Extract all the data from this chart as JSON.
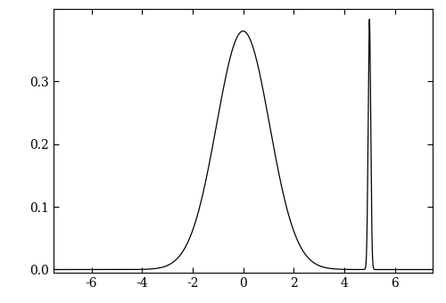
{
  "title": "",
  "xlabel": "",
  "ylabel": "",
  "xlim": [
    -7.5,
    7.5
  ],
  "ylim": [
    -0.005,
    0.415
  ],
  "xticks": [
    -6,
    -4,
    -2,
    0,
    2,
    4,
    6
  ],
  "yticks": [
    0.0,
    0.1,
    0.2,
    0.3
  ],
  "component1_mean": 0.0,
  "component1_std": 1.05,
  "component1_weight": 1.0,
  "component2_mean": 5.0,
  "component2_std": 0.05,
  "component2_weight": 0.05,
  "line_color": "#000000",
  "line_width": 0.9,
  "background_color": "#ffffff",
  "figsize": [
    5.0,
    3.4
  ],
  "dpi": 100
}
